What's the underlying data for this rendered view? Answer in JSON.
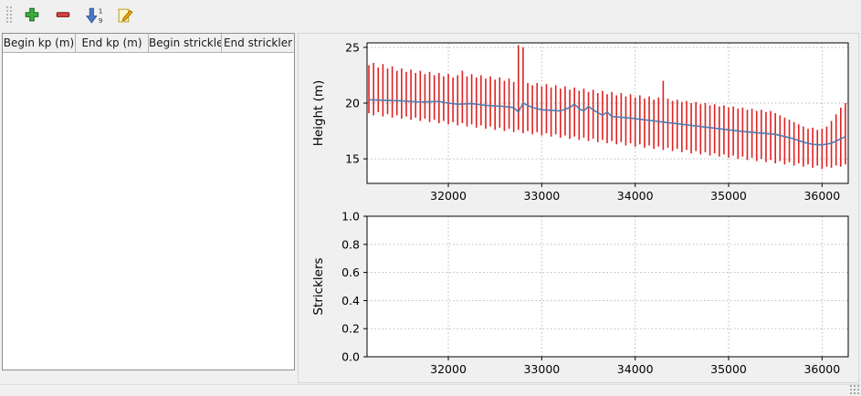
{
  "colors": {
    "window_bg": "#f0f0f0",
    "plot_bg": "#ffffff",
    "grid": "#b0b0b0",
    "frame": "#000000",
    "add_green": "#3fae3f",
    "remove_red": "#d04545",
    "sort_blue": "#4a78c8",
    "pencil_orange": "#f0a500",
    "errorbar_red": "#dd2222",
    "waterline_blue": "#4f7bb0"
  },
  "toolbar": {
    "sort_digit_top": "1",
    "sort_digit_bottom": "9",
    "buttons": [
      {
        "name": "add-row",
        "icon": "plus-icon"
      },
      {
        "name": "remove-row",
        "icon": "minus-icon"
      },
      {
        "name": "sort-rows",
        "icon": "sort-numeric-icon"
      },
      {
        "name": "edit-cell",
        "icon": "edit-icon"
      }
    ]
  },
  "table": {
    "headers": [
      "Begin kp (m)",
      "End kp (m)",
      "Begin strickler",
      "End strickler"
    ],
    "rows": []
  },
  "chart_data": [
    {
      "id": "height",
      "type": "line",
      "title": "",
      "xlabel": "",
      "ylabel": "Height (m)",
      "xlim": [
        31130,
        36280
      ],
      "ylim": [
        12.8,
        25.4
      ],
      "xticks": [
        32000,
        33000,
        34000,
        35000,
        36000
      ],
      "xtick_labels": [
        "32000",
        "33000",
        "34000",
        "35000",
        "36000"
      ],
      "yticks": [
        15,
        20,
        25
      ],
      "ytick_labels": [
        "15",
        "20",
        "25"
      ],
      "grid": true,
      "series": [
        {
          "name": "cross-section-extents",
          "style": "vertical-bars",
          "color": "#dd2222",
          "bars": [
            [
              31150,
              19.1,
              23.4
            ],
            [
              31200,
              18.9,
              23.6
            ],
            [
              31250,
              19.2,
              23.2
            ],
            [
              31300,
              18.8,
              23.5
            ],
            [
              31350,
              19.0,
              23.1
            ],
            [
              31400,
              18.7,
              23.3
            ],
            [
              31450,
              18.9,
              22.9
            ],
            [
              31500,
              18.6,
              23.1
            ],
            [
              31550,
              18.8,
              22.8
            ],
            [
              31600,
              18.5,
              23.0
            ],
            [
              31650,
              18.7,
              22.7
            ],
            [
              31700,
              18.4,
              22.9
            ],
            [
              31750,
              18.6,
              22.6
            ],
            [
              31800,
              18.3,
              22.8
            ],
            [
              31850,
              18.5,
              22.5
            ],
            [
              31900,
              18.2,
              22.7
            ],
            [
              31950,
              18.4,
              22.4
            ],
            [
              32000,
              18.1,
              22.6
            ],
            [
              32050,
              18.3,
              22.3
            ],
            [
              32100,
              18.0,
              22.5
            ],
            [
              32150,
              18.2,
              22.9
            ],
            [
              32200,
              17.9,
              22.4
            ],
            [
              32250,
              18.1,
              22.6
            ],
            [
              32300,
              17.8,
              22.3
            ],
            [
              32350,
              18.0,
              22.5
            ],
            [
              32400,
              17.7,
              22.2
            ],
            [
              32450,
              17.9,
              22.4
            ],
            [
              32500,
              17.6,
              22.1
            ],
            [
              32550,
              17.8,
              22.3
            ],
            [
              32600,
              17.5,
              22.0
            ],
            [
              32650,
              17.7,
              22.2
            ],
            [
              32700,
              17.4,
              21.9
            ],
            [
              32750,
              17.6,
              25.2
            ],
            [
              32800,
              17.3,
              25.0
            ],
            [
              32850,
              17.5,
              21.8
            ],
            [
              32900,
              17.2,
              21.6
            ],
            [
              32950,
              17.4,
              21.8
            ],
            [
              33000,
              17.1,
              21.5
            ],
            [
              33050,
              17.3,
              21.7
            ],
            [
              33100,
              17.0,
              21.4
            ],
            [
              33150,
              17.2,
              21.6
            ],
            [
              33200,
              16.9,
              21.3
            ],
            [
              33250,
              17.1,
              21.5
            ],
            [
              33300,
              16.8,
              21.2
            ],
            [
              33350,
              17.0,
              21.4
            ],
            [
              33400,
              16.7,
              21.1
            ],
            [
              33450,
              16.9,
              21.3
            ],
            [
              33500,
              16.6,
              21.0
            ],
            [
              33550,
              16.8,
              21.2
            ],
            [
              33600,
              16.5,
              20.9
            ],
            [
              33650,
              16.7,
              21.1
            ],
            [
              33700,
              16.4,
              20.8
            ],
            [
              33750,
              16.6,
              21.0
            ],
            [
              33800,
              16.3,
              20.7
            ],
            [
              33850,
              16.5,
              20.9
            ],
            [
              33900,
              16.2,
              20.6
            ],
            [
              33950,
              16.4,
              20.8
            ],
            [
              34000,
              16.1,
              20.5
            ],
            [
              34050,
              16.3,
              20.7
            ],
            [
              34100,
              16.0,
              20.4
            ],
            [
              34150,
              16.2,
              20.6
            ],
            [
              34200,
              15.9,
              20.3
            ],
            [
              34250,
              16.1,
              20.5
            ],
            [
              34300,
              15.8,
              22.0
            ],
            [
              34350,
              16.0,
              20.4
            ],
            [
              34400,
              15.7,
              20.2
            ],
            [
              34450,
              15.9,
              20.3
            ],
            [
              34500,
              15.6,
              20.1
            ],
            [
              34550,
              15.8,
              20.2
            ],
            [
              34600,
              15.5,
              20.0
            ],
            [
              34650,
              15.7,
              20.1
            ],
            [
              34700,
              15.4,
              19.9
            ],
            [
              34750,
              15.6,
              20.0
            ],
            [
              34800,
              15.3,
              19.8
            ],
            [
              34850,
              15.5,
              19.9
            ],
            [
              34900,
              15.2,
              19.7
            ],
            [
              34950,
              15.4,
              19.8
            ],
            [
              35000,
              15.1,
              19.6
            ],
            [
              35050,
              15.3,
              19.7
            ],
            [
              35100,
              15.0,
              19.5
            ],
            [
              35150,
              15.2,
              19.6
            ],
            [
              35200,
              14.9,
              19.4
            ],
            [
              35250,
              15.1,
              19.5
            ],
            [
              35300,
              14.8,
              19.3
            ],
            [
              35350,
              15.0,
              19.4
            ],
            [
              35400,
              14.7,
              19.2
            ],
            [
              35450,
              14.9,
              19.3
            ],
            [
              35500,
              14.6,
              19.1
            ],
            [
              35550,
              14.8,
              18.9
            ],
            [
              35600,
              14.5,
              18.7
            ],
            [
              35650,
              14.7,
              18.5
            ],
            [
              35700,
              14.4,
              18.3
            ],
            [
              35750,
              14.6,
              18.1
            ],
            [
              35800,
              14.3,
              17.9
            ],
            [
              35850,
              14.5,
              17.7
            ],
            [
              35900,
              14.2,
              17.8
            ],
            [
              35950,
              14.4,
              17.6
            ],
            [
              36000,
              14.1,
              17.7
            ],
            [
              36050,
              14.3,
              17.9
            ],
            [
              36100,
              14.2,
              18.4
            ],
            [
              36150,
              14.4,
              19.0
            ],
            [
              36200,
              14.3,
              19.6
            ],
            [
              36250,
              14.5,
              20.0
            ]
          ]
        },
        {
          "name": "water-line",
          "style": "line",
          "color": "#4f7bb0",
          "points": [
            [
              31150,
              20.3
            ],
            [
              31300,
              20.25
            ],
            [
              31500,
              20.2
            ],
            [
              31700,
              20.1
            ],
            [
              31900,
              20.15
            ],
            [
              32000,
              20.0
            ],
            [
              32100,
              19.9
            ],
            [
              32250,
              19.95
            ],
            [
              32400,
              19.8
            ],
            [
              32500,
              19.75
            ],
            [
              32600,
              19.7
            ],
            [
              32700,
              19.6
            ],
            [
              32750,
              19.2
            ],
            [
              32800,
              20.0
            ],
            [
              32900,
              19.6
            ],
            [
              33000,
              19.4
            ],
            [
              33100,
              19.35
            ],
            [
              33200,
              19.3
            ],
            [
              33300,
              19.6
            ],
            [
              33350,
              19.9
            ],
            [
              33400,
              19.5
            ],
            [
              33450,
              19.3
            ],
            [
              33500,
              19.7
            ],
            [
              33550,
              19.4
            ],
            [
              33650,
              18.9
            ],
            [
              33700,
              19.2
            ],
            [
              33750,
              18.8
            ],
            [
              33900,
              18.7
            ],
            [
              34000,
              18.6
            ],
            [
              34100,
              18.5
            ],
            [
              34300,
              18.3
            ],
            [
              34500,
              18.1
            ],
            [
              34700,
              17.9
            ],
            [
              34900,
              17.7
            ],
            [
              35100,
              17.5
            ],
            [
              35300,
              17.35
            ],
            [
              35500,
              17.2
            ],
            [
              35600,
              17.0
            ],
            [
              35700,
              16.8
            ],
            [
              35800,
              16.5
            ],
            [
              35900,
              16.3
            ],
            [
              36000,
              16.25
            ],
            [
              36100,
              16.4
            ],
            [
              36200,
              16.8
            ],
            [
              36250,
              17.0
            ]
          ]
        }
      ]
    },
    {
      "id": "stricklers",
      "type": "line",
      "title": "",
      "xlabel": "",
      "ylabel": "Stricklers",
      "xlim": [
        31130,
        36280
      ],
      "ylim": [
        0,
        1
      ],
      "xticks": [
        32000,
        33000,
        34000,
        35000,
        36000
      ],
      "xtick_labels": [
        "32000",
        "33000",
        "34000",
        "35000",
        "36000"
      ],
      "yticks": [
        0,
        0.2,
        0.4,
        0.6,
        0.8,
        1.0
      ],
      "ytick_labels": [
        "0.0",
        "0.2",
        "0.4",
        "0.6",
        "0.8",
        "1.0"
      ],
      "grid": true,
      "series": []
    }
  ]
}
